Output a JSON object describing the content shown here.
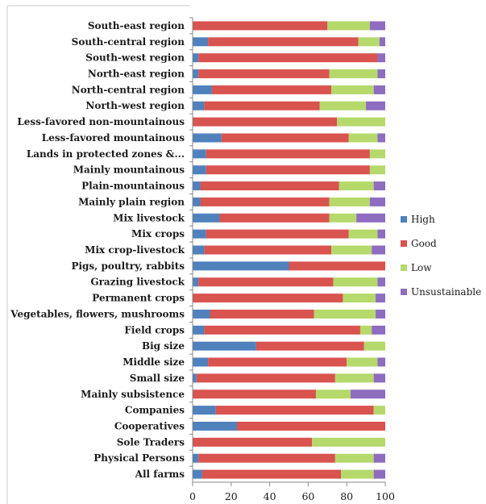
{
  "chart_data": {
    "type": "bar",
    "orientation": "horizontal",
    "stacked": true,
    "title": "",
    "xlim": [
      0,
      100
    ],
    "x_ticks": [
      0,
      20,
      40,
      60,
      80,
      100
    ],
    "grid": false,
    "legend_placement": "right",
    "categories": [
      "South-east region",
      "South-central region",
      "South-west region",
      "North-east region",
      "North-central region",
      "North-west region",
      "Less-favored non-mountainous",
      "Less-favored mountainous",
      "Lands in protected zones &...",
      "Mainly mountainous",
      "Plain-mountainous",
      "Mainly plain region",
      "Mix livestock",
      "Mix crops",
      "Mix crop-livestock",
      "Pigs, poultry, rabbits",
      "Grazing livestock",
      "Permanent crops",
      "Vegetables, flowers, mushrooms",
      "Field crops",
      "Big size",
      "Middle size",
      "Small size",
      "Mainly subsistence",
      "Companies",
      "Cooperatives",
      "Sole Traders",
      "Physical Persons",
      "All farms"
    ],
    "series": [
      {
        "name": "High",
        "color": "#4f81bd",
        "values": [
          0,
          8,
          3,
          3,
          10,
          6,
          0,
          15,
          7,
          7,
          4,
          4,
          14,
          7,
          6,
          50,
          3,
          0,
          9,
          6,
          33,
          8,
          2,
          0,
          12,
          23,
          0,
          3,
          5
        ]
      },
      {
        "name": "Good",
        "color": "#d9534f",
        "values": [
          70,
          78,
          93,
          68,
          62,
          60,
          75,
          66,
          85,
          85,
          72,
          67,
          57,
          74,
          66,
          50,
          70,
          78,
          54,
          81,
          56,
          72,
          72,
          64,
          82,
          77,
          62,
          71,
          72
        ]
      },
      {
        "name": "Low",
        "color": "#b5d96b",
        "values": [
          22,
          11,
          0,
          25,
          22,
          24,
          25,
          15,
          8,
          8,
          18,
          21,
          14,
          15,
          21,
          0,
          23,
          17,
          32,
          6,
          11,
          16,
          20,
          18,
          6,
          0,
          38,
          20,
          17
        ]
      },
      {
        "name": "Unsustainable",
        "color": "#8e6cc0",
        "values": [
          8,
          3,
          4,
          4,
          6,
          10,
          0,
          4,
          0,
          0,
          6,
          8,
          15,
          4,
          7,
          0,
          4,
          5,
          5,
          7,
          0,
          4,
          6,
          18,
          0,
          0,
          0,
          6,
          6
        ]
      }
    ]
  }
}
